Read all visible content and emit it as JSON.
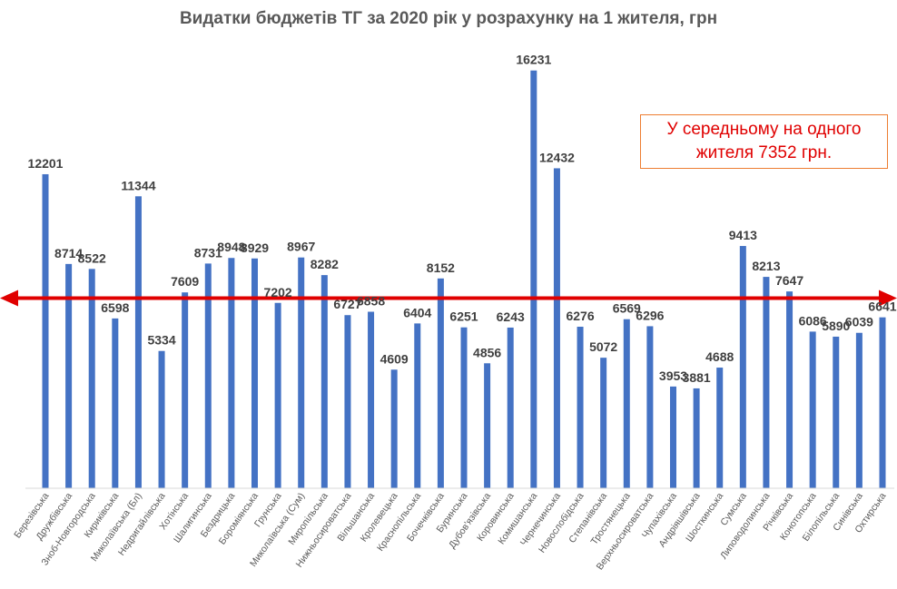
{
  "chart_data": {
    "type": "bar",
    "title": "Видатки бюджетів  ТГ за 2020 рік у розрахунку на 1 жителя, грн",
    "categories": [
      "Березівська",
      "Дружбівська",
      "Зноб-Новгородська",
      "Кириківська",
      "Миколаївська (Бл)",
      "Недригайлівська",
      "Хотінська",
      "Шалигинська",
      "Бездрицька",
      "Бороміянська",
      "Грунська",
      "Миколаївська (Сум)",
      "Миропільська",
      "Нижньосироватська",
      "Вільшанська",
      "Кролевецька",
      "Краснопільська",
      "Бочечківська",
      "Буринська",
      "Дубов'язівська",
      "Коровинська",
      "Комишанська",
      "Чернечинська",
      "Новослобідська",
      "Степанівська",
      "Тростянецька",
      "Верхньосироватська",
      "Чупахівська",
      "Андріяшівська",
      "Шосткинська",
      "Сумська",
      "Липоводолинська",
      "Річківська",
      "Конотопська",
      "Білопільська",
      "Синівська",
      "Охтирська"
    ],
    "values": [
      12201,
      8714,
      8522,
      6598,
      11344,
      5334,
      7609,
      8731,
      8948,
      8929,
      7202,
      8967,
      8282,
      6727,
      6858,
      4609,
      6404,
      8152,
      6251,
      4856,
      6243,
      16231,
      12432,
      6276,
      5072,
      6569,
      6296,
      3953,
      3881,
      4688,
      9413,
      8213,
      7647,
      6086,
      5890,
      6039,
      6641
    ],
    "average": 7352,
    "ylim": [
      0,
      17000
    ],
    "xlabel": "",
    "ylabel": "",
    "grid": false,
    "legend": "none",
    "colors": {
      "bar": "#4472c4",
      "average_line": "#e00000",
      "value_label": "#404040",
      "category_label": "#595959"
    }
  },
  "annotation": {
    "line1": "У середньому  на одного",
    "line2": "жителя  7352 грн."
  }
}
